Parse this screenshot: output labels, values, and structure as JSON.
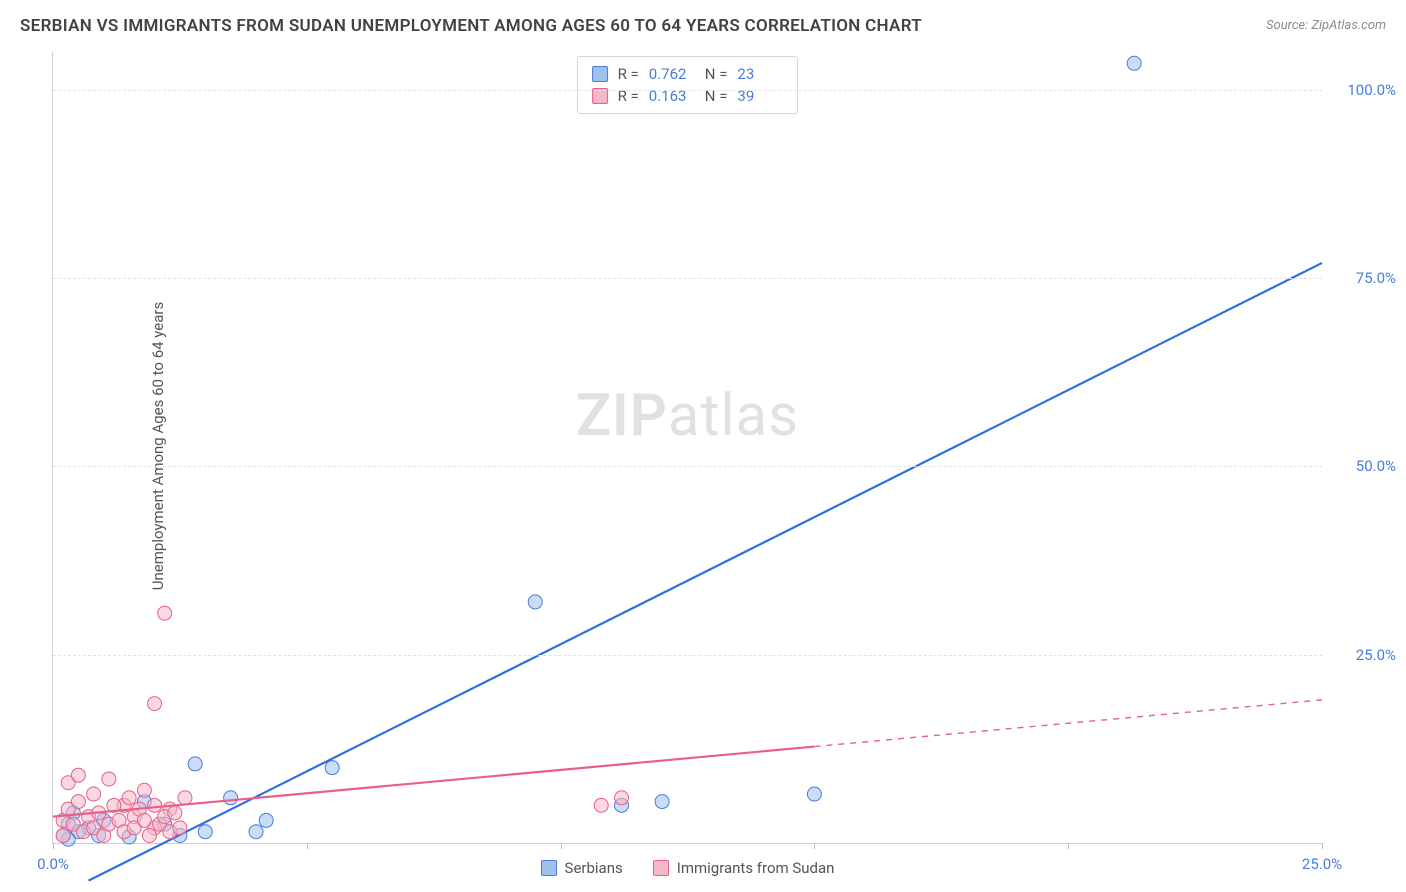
{
  "title": "SERBIAN VS IMMIGRANTS FROM SUDAN UNEMPLOYMENT AMONG AGES 60 TO 64 YEARS CORRELATION CHART",
  "source_prefix": "Source: ",
  "source_name": "ZipAtlas.com",
  "ylabel": "Unemployment Among Ages 60 to 64 years",
  "watermark_a": "ZIP",
  "watermark_b": "atlas",
  "chart": {
    "type": "scatter",
    "background_color": "#ffffff",
    "grid_color": "#e2e2e2",
    "axis_color": "#d0d0d0",
    "tick_label_color": "#4a7dd8",
    "title_color": "#424242",
    "title_fontsize": 17,
    "label_fontsize": 15,
    "tick_fontsize": 15,
    "xlim": [
      0,
      25
    ],
    "ylim": [
      0,
      105
    ],
    "xtick_positions": [
      0,
      5,
      10,
      15,
      20,
      25
    ],
    "xtick_labels": [
      "0.0%",
      "",
      "",
      "",
      "",
      "25.0%"
    ],
    "ytick_positions": [
      25,
      50,
      75,
      100
    ],
    "ytick_labels": [
      "25.0%",
      "50.0%",
      "75.0%",
      "100.0%"
    ],
    "marker_radius": 7,
    "marker_opacity": 0.55,
    "line_width": 2.2,
    "series": [
      {
        "name": "Serbians",
        "fill": "#9fc1ee",
        "stroke": "#4a7dd8",
        "line_color": "#2f6fe0",
        "R": "0.762",
        "N": "23",
        "points": [
          [
            21.3,
            103.5
          ],
          [
            9.5,
            32.0
          ],
          [
            11.2,
            5.0
          ],
          [
            12.0,
            5.5
          ],
          [
            15.0,
            6.5
          ],
          [
            5.5,
            10.0
          ],
          [
            4.2,
            3.0
          ],
          [
            4.0,
            1.5
          ],
          [
            2.8,
            10.5
          ],
          [
            2.2,
            2.5
          ],
          [
            1.8,
            5.5
          ],
          [
            1.5,
            0.8
          ],
          [
            1.0,
            3.0
          ],
          [
            0.9,
            1.0
          ],
          [
            0.7,
            2.0
          ],
          [
            0.5,
            1.5
          ],
          [
            0.4,
            4.0
          ],
          [
            0.3,
            0.5
          ],
          [
            0.3,
            2.5
          ],
          [
            0.2,
            1.0
          ],
          [
            2.5,
            1.0
          ],
          [
            3.5,
            6.0
          ],
          [
            3.0,
            1.5
          ]
        ],
        "trend": {
          "x1": 0.7,
          "y1": -5.0,
          "x2": 25.0,
          "y2": 77.0,
          "dashed_from": null
        }
      },
      {
        "name": "Immigrants from Sudan",
        "fill": "#f4b8c8",
        "stroke": "#e85f89",
        "line_color": "#e85f89",
        "R": "0.163",
        "N": "39",
        "points": [
          [
            2.2,
            30.5
          ],
          [
            2.0,
            18.5
          ],
          [
            10.8,
            5.0
          ],
          [
            11.2,
            6.0
          ],
          [
            0.3,
            8.0
          ],
          [
            0.5,
            9.0
          ],
          [
            0.8,
            6.5
          ],
          [
            1.1,
            8.5
          ],
          [
            1.4,
            5.0
          ],
          [
            1.6,
            3.5
          ],
          [
            1.8,
            7.0
          ],
          [
            2.0,
            2.0
          ],
          [
            2.3,
            4.5
          ],
          [
            2.6,
            6.0
          ],
          [
            0.2,
            1.0
          ],
          [
            0.2,
            3.0
          ],
          [
            0.3,
            4.5
          ],
          [
            0.4,
            2.5
          ],
          [
            0.5,
            5.5
          ],
          [
            0.6,
            1.5
          ],
          [
            0.7,
            3.5
          ],
          [
            0.8,
            2.0
          ],
          [
            0.9,
            4.0
          ],
          [
            1.0,
            1.0
          ],
          [
            1.1,
            2.5
          ],
          [
            1.2,
            5.0
          ],
          [
            1.3,
            3.0
          ],
          [
            1.4,
            1.5
          ],
          [
            1.5,
            6.0
          ],
          [
            1.6,
            2.0
          ],
          [
            1.7,
            4.5
          ],
          [
            1.8,
            3.0
          ],
          [
            1.9,
            1.0
          ],
          [
            2.0,
            5.0
          ],
          [
            2.1,
            2.5
          ],
          [
            2.2,
            3.5
          ],
          [
            2.3,
            1.5
          ],
          [
            2.4,
            4.0
          ],
          [
            2.5,
            2.0
          ]
        ],
        "trend": {
          "x1": 0.0,
          "y1": 3.5,
          "x2": 25.0,
          "y2": 19.0,
          "dashed_from": 15.0
        }
      }
    ]
  },
  "stats_box": {
    "r_label": "R =",
    "n_label": "N ="
  },
  "legend": {
    "series1_label": "Serbians",
    "series2_label": "Immigrants from Sudan"
  }
}
